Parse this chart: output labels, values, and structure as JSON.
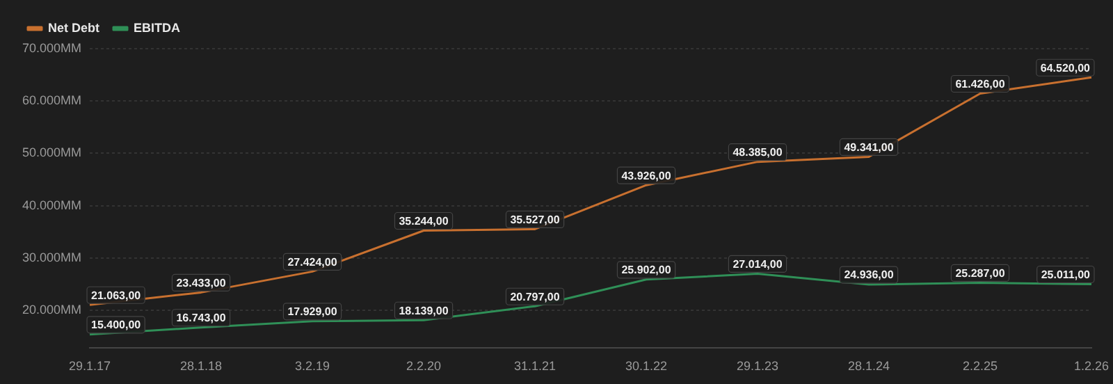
{
  "chart_data": {
    "type": "line",
    "categories": [
      "29.1.17",
      "28.1.18",
      "3.2.19",
      "2.2.20",
      "31.1.21",
      "30.1.22",
      "29.1.23",
      "28.1.24",
      "2.2.25",
      "1.2.26"
    ],
    "series": [
      {
        "name": "Net Debt",
        "color": "#c8702f",
        "values": [
          21063,
          23433,
          27424,
          35244,
          35527,
          43926,
          48385,
          49341,
          61426,
          64520
        ],
        "value_labels": [
          "21.063,00",
          "23.433,00",
          "27.424,00",
          "35.244,00",
          "35.527,00",
          "43.926,00",
          "48.385,00",
          "49.341,00",
          "61.426,00",
          "64.520,00"
        ]
      },
      {
        "name": "EBITDA",
        "color": "#2f8f57",
        "values": [
          15400,
          16743,
          17929,
          18139,
          20797,
          25902,
          27014,
          24936,
          25287,
          25011
        ],
        "value_labels": [
          "15.400,00",
          "16.743,00",
          "17.929,00",
          "18.139,00",
          "20.797,00",
          "25.902,00",
          "27.014,00",
          "24.936,00",
          "25.287,00",
          "25.011,00"
        ]
      }
    ],
    "ylim": [
      12800,
      70000
    ],
    "yticks": [
      {
        "value": 20000,
        "label": "20.000MM"
      },
      {
        "value": 30000,
        "label": "30.000MM"
      },
      {
        "value": 40000,
        "label": "40.000MM"
      },
      {
        "value": 50000,
        "label": "50.000MM"
      },
      {
        "value": 60000,
        "label": "60.000MM"
      },
      {
        "value": 70000,
        "label": "70.000MM"
      }
    ],
    "grid": "y",
    "legend": "top left",
    "marker": "none",
    "line_style": "solid"
  }
}
